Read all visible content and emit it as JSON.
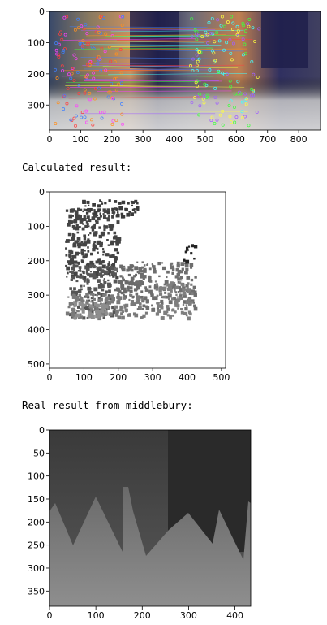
{
  "outputs": {
    "calculated_label": "Calculated result:",
    "real_label": "Real result from middlebury:"
  },
  "plots": [
    {
      "id": "matches",
      "xticks": [
        "0",
        "100",
        "200",
        "300",
        "400",
        "500",
        "600",
        "700",
        "800"
      ],
      "yticks": [
        "0",
        "100",
        "200",
        "300"
      ]
    },
    {
      "id": "calculated",
      "xticks": [
        "0",
        "100",
        "200",
        "300",
        "400",
        "500"
      ],
      "yticks": [
        "0",
        "100",
        "200",
        "300",
        "400",
        "500"
      ]
    },
    {
      "id": "real",
      "xticks": [
        "0",
        "100",
        "200",
        "300",
        "400"
      ],
      "yticks": [
        "0",
        "50",
        "100",
        "150",
        "200",
        "250",
        "300",
        "350"
      ]
    }
  ]
}
